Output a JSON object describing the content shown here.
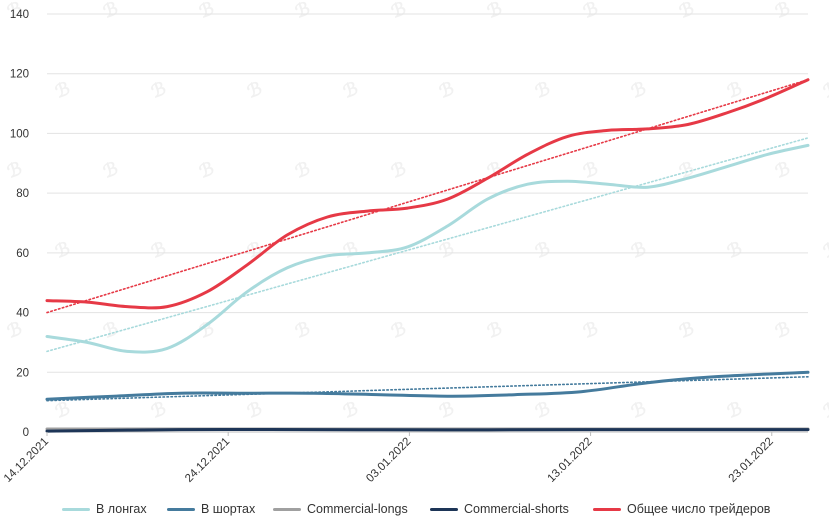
{
  "chart_data": {
    "type": "line",
    "title": "",
    "xlabel": "",
    "ylabel": "",
    "ylim": [
      0,
      140
    ],
    "y_ticks": [
      "0",
      "20",
      "40",
      "60",
      "80",
      "100",
      "120",
      "140"
    ],
    "x_tick_labels": [
      "14.12.2021",
      "24.12.2021",
      "03.01.2022",
      "13.01.2022",
      "23.01.2022"
    ],
    "x_day_range": [
      0,
      42
    ],
    "grid": true,
    "legend_position": "bottom",
    "series": [
      {
        "name": "В лонгах",
        "color": "#a8dadc",
        "points": [
          [
            0,
            32
          ],
          [
            3,
            30
          ],
          [
            6,
            27
          ],
          [
            9,
            28
          ],
          [
            12,
            36
          ],
          [
            15,
            47
          ],
          [
            18,
            55
          ],
          [
            21,
            59
          ],
          [
            24,
            60
          ],
          [
            27,
            62
          ],
          [
            30,
            69
          ],
          [
            33,
            78
          ],
          [
            36,
            83
          ],
          [
            39,
            84
          ],
          [
            42,
            83
          ],
          [
            45,
            82
          ],
          [
            48,
            85
          ],
          [
            51,
            89
          ],
          [
            54,
            93
          ],
          [
            57,
            96
          ]
        ],
        "trend": [
          27,
          98.5
        ]
      },
      {
        "name": "В шортах",
        "color": "#457b9d",
        "points": [
          [
            0,
            11
          ],
          [
            5,
            12
          ],
          [
            10,
            13
          ],
          [
            15,
            13
          ],
          [
            20,
            13
          ],
          [
            25,
            12.5
          ],
          [
            30,
            12
          ],
          [
            35,
            12.5
          ],
          [
            40,
            13.5
          ],
          [
            45,
            16.5
          ],
          [
            50,
            18.5
          ],
          [
            57,
            20
          ]
        ],
        "trend": [
          10.5,
          18.5
        ]
      },
      {
        "name": "Commercial-longs",
        "color": "#a0a0a0",
        "points": [
          [
            0,
            1
          ],
          [
            57,
            1
          ]
        ],
        "trend": null
      },
      {
        "name": "Commercial-shorts",
        "color": "#1d3557",
        "points": [
          [
            0,
            0.3
          ],
          [
            10,
            0.8
          ],
          [
            20,
            0.8
          ],
          [
            30,
            0.7
          ],
          [
            40,
            0.8
          ],
          [
            57,
            0.8
          ]
        ],
        "trend": null
      },
      {
        "name": "Общее число трейдеров",
        "color": "#e63946",
        "points": [
          [
            0,
            44
          ],
          [
            3,
            43.5
          ],
          [
            6,
            42
          ],
          [
            9,
            42
          ],
          [
            12,
            47
          ],
          [
            15,
            56
          ],
          [
            18,
            66
          ],
          [
            21,
            72
          ],
          [
            24,
            74
          ],
          [
            27,
            75
          ],
          [
            30,
            78
          ],
          [
            33,
            85
          ],
          [
            36,
            93
          ],
          [
            39,
            99
          ],
          [
            42,
            101
          ],
          [
            45,
            101.5
          ],
          [
            48,
            103
          ],
          [
            51,
            107
          ],
          [
            54,
            112
          ],
          [
            57,
            118
          ]
        ],
        "trend": [
          40,
          118
        ]
      }
    ]
  }
}
